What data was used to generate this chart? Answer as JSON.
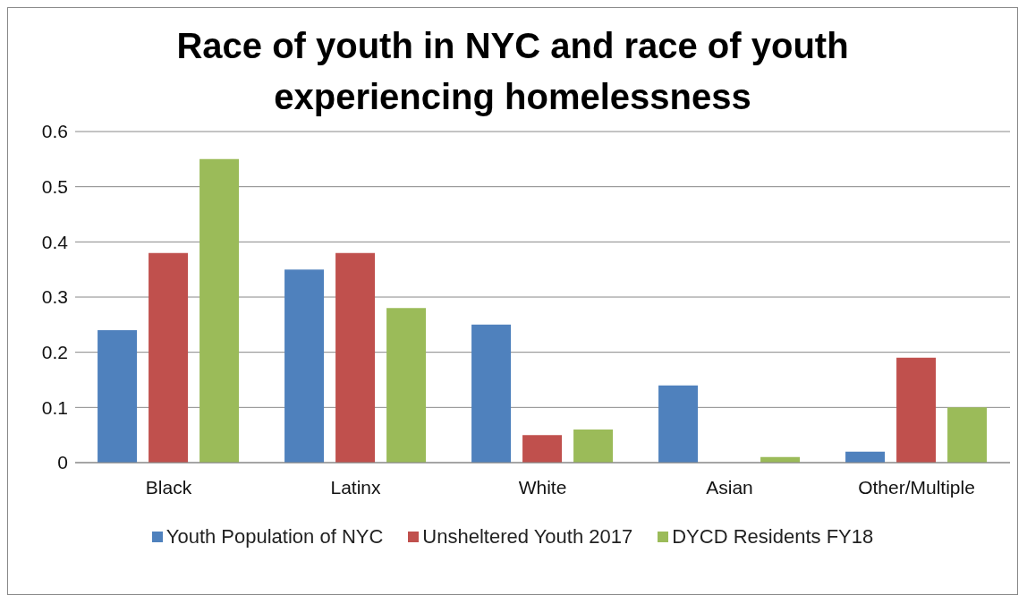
{
  "chart_data": {
    "type": "bar",
    "title": "Race of youth in NYC and race of youth experiencing homelessness",
    "categories": [
      "Black",
      "Latinx",
      "White",
      "Asian",
      "Other/Multiple"
    ],
    "series": [
      {
        "name": "Youth Population of NYC",
        "color": "#4f81bd",
        "values": [
          0.24,
          0.35,
          0.25,
          0.14,
          0.02
        ]
      },
      {
        "name": "Unsheltered Youth 2017",
        "color": "#c0504d",
        "values": [
          0.38,
          0.38,
          0.05,
          0,
          0.19
        ]
      },
      {
        "name": "DYCD Residents FY18",
        "color": "#9bbb59",
        "values": [
          0.55,
          0.28,
          0.06,
          0.01,
          0.1
        ]
      }
    ],
    "ylim": [
      0,
      0.6
    ],
    "yticks": [
      0,
      0.1,
      0.2,
      0.3,
      0.4,
      0.5,
      0.6
    ],
    "grid": "y",
    "legend": "bottom"
  }
}
